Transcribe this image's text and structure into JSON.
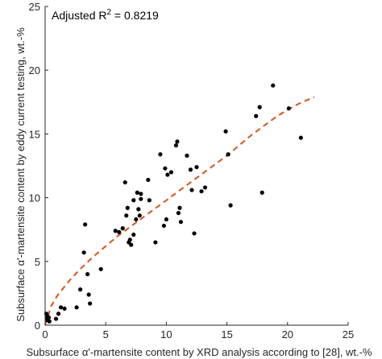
{
  "chart_data": {
    "type": "scatter",
    "title": "",
    "xlabel": "Subsurface α'-martensite content by XRD analysis according to [28], wt.-%",
    "ylabel": "Subsurface α'-martensite content by eddy current testing, wt.-%",
    "xlim": [
      0,
      25
    ],
    "ylim": [
      0,
      25
    ],
    "xticks": [
      0,
      5,
      10,
      15,
      20,
      25
    ],
    "yticks": [
      0,
      5,
      10,
      15,
      20,
      25
    ],
    "grid": false,
    "annotation": {
      "prefix": "Adjusted R",
      "superscript": "2",
      "suffix": " = 0.8219"
    },
    "colors": {
      "points": "#000000",
      "fit": "#d95319",
      "axis": "#262626"
    },
    "series": [
      {
        "kind": "points",
        "x": [
          0.1,
          0.2,
          0.15,
          0.3,
          0.2,
          0.35,
          0.9,
          1.3,
          1.1,
          1.6,
          2.6,
          2.9,
          3.2,
          3.3,
          3.5,
          3.6,
          3.7,
          4.6,
          5.8,
          6.1,
          6.4,
          6.6,
          6.7,
          6.8,
          6.9,
          7.0,
          7.1,
          7.3,
          7.3,
          7.5,
          7.6,
          7.7,
          7.8,
          7.9,
          7.9,
          8.5,
          8.6,
          9.1,
          9.5,
          9.8,
          9.9,
          10.0,
          10.1,
          10.4,
          10.8,
          10.9,
          11.0,
          11.1,
          11.2,
          11.7,
          12.0,
          12.1,
          12.3,
          12.5,
          12.9,
          13.2,
          14.9,
          15.1,
          15.3,
          17.4,
          17.7,
          17.9,
          18.8,
          20.1,
          21.1
        ],
        "y": [
          0.9,
          0.7,
          0.5,
          0.6,
          0.4,
          0.3,
          0.5,
          1.4,
          0.9,
          1.3,
          1.4,
          2.8,
          5.7,
          7.9,
          4.0,
          2.4,
          1.7,
          4.4,
          7.4,
          7.3,
          7.6,
          11.2,
          8.6,
          9.2,
          6.5,
          6.7,
          6.3,
          9.8,
          7.1,
          8.3,
          10.4,
          9.1,
          8.6,
          9.9,
          10.3,
          11.4,
          9.8,
          6.5,
          13.4,
          7.8,
          12.3,
          8.3,
          11.8,
          12.0,
          14.1,
          14.4,
          8.8,
          9.2,
          8.1,
          13.3,
          12.2,
          10.6,
          7.2,
          12.4,
          10.5,
          10.8,
          15.2,
          13.4,
          9.4,
          16.4,
          17.1,
          10.4,
          18.8,
          17.0,
          14.7
        ]
      },
      {
        "kind": "fit-curve",
        "x": [
          0,
          0.5,
          1,
          2,
          3,
          4,
          5,
          6,
          7,
          8,
          9,
          10,
          11,
          12,
          13,
          14,
          15,
          16,
          17,
          18,
          19,
          20,
          21,
          22.2
        ],
        "y": [
          0,
          1.5,
          2.3,
          3.5,
          4.5,
          5.4,
          6.2,
          7.0,
          7.7,
          8.4,
          9.1,
          9.8,
          10.5,
          11.2,
          11.9,
          12.6,
          13.3,
          14.1,
          14.9,
          15.6,
          16.3,
          16.9,
          17.4,
          17.9
        ]
      }
    ]
  }
}
